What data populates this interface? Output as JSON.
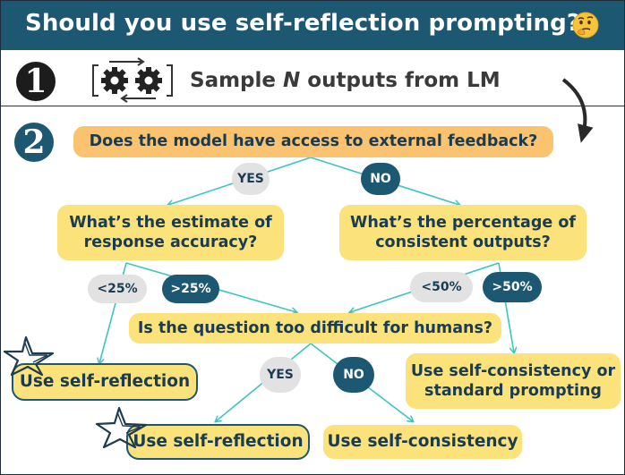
{
  "header": {
    "title": "Should you use self-reflection prompting?",
    "emoji_icon": "thinking-face-icon"
  },
  "step1": {
    "number": "1",
    "text_before": "Sample ",
    "text_italic": "N",
    "text_after": " outputs from LM",
    "icon": "gears-cycle-icon"
  },
  "step2": {
    "number": "2"
  },
  "nodes": {
    "root": "Does the model have access to external feedback?",
    "estimate": [
      "What’s the estimate of",
      "response accuracy?"
    ],
    "percentage": [
      "What’s the percentage of",
      "consistent outputs?"
    ],
    "difficult": "Is the question too difficult for humans?",
    "use_reflection_left": "Use self-reflection",
    "use_consistency_or_standard": [
      "Use self-consistency or",
      "standard prompting"
    ],
    "use_reflection_bottom": "Use self-reflection",
    "use_consistency_bottom": "Use self-consistency"
  },
  "pills": {
    "yes_top": "YES",
    "no_top": "NO",
    "lt25": "<25%",
    "gt25": ">25%",
    "lt50": "<50%",
    "gt50": ">50%",
    "yes_bottom": "YES",
    "no_bottom": "NO"
  },
  "colors": {
    "header_bg": "#1d5872",
    "box_yellow": "#fce27a",
    "box_orange": "#fbc26f",
    "line_teal": "#3ec4c1",
    "pill_dark": "#1d5872",
    "pill_grey": "#e2e2e2"
  }
}
